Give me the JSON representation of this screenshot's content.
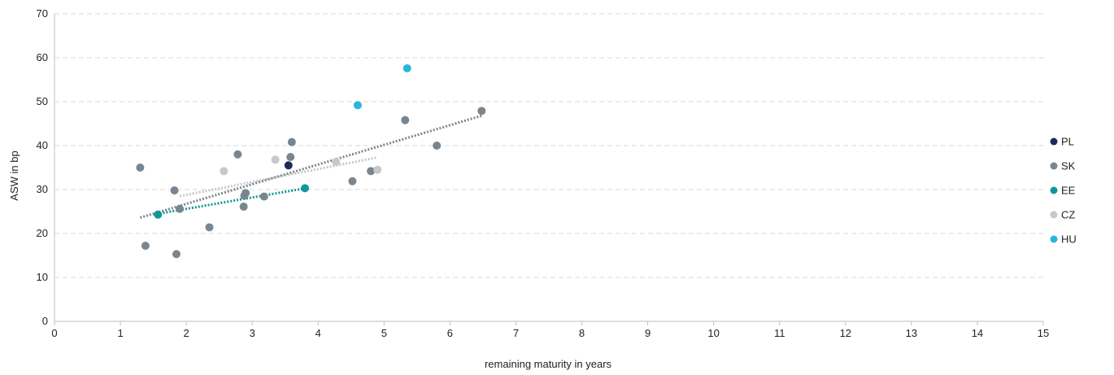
{
  "chart_data": {
    "type": "scatter",
    "title": "",
    "xlabel": "remaining maturity in years",
    "ylabel": "ASW in bp",
    "xlim": [
      0,
      15
    ],
    "ylim": [
      0,
      70
    ],
    "x_ticks": [
      0,
      1,
      2,
      3,
      4,
      5,
      6,
      7,
      8,
      9,
      10,
      11,
      12,
      13,
      14,
      15
    ],
    "y_ticks": [
      0,
      10,
      20,
      30,
      40,
      50,
      60,
      70
    ],
    "grid": "horizontal dashed",
    "legend_position": "right",
    "series": [
      {
        "name": "PL",
        "color": "#1b2a5e",
        "points": [
          [
            3.55,
            35.5
          ]
        ]
      },
      {
        "name": "SK",
        "color": "#7a868f",
        "points": [
          [
            1.3,
            35
          ],
          [
            1.38,
            17.2
          ],
          [
            1.82,
            29.8
          ],
          [
            1.85,
            15.3
          ],
          [
            1.9,
            25.6
          ],
          [
            2.35,
            21.4
          ],
          [
            2.78,
            38
          ],
          [
            2.87,
            26.1
          ],
          [
            2.88,
            28.6
          ],
          [
            2.9,
            29.2
          ],
          [
            3.18,
            28.4
          ],
          [
            3.58,
            37.4
          ],
          [
            3.6,
            40.8
          ],
          [
            4.52,
            31.9
          ],
          [
            4.8,
            34.2
          ],
          [
            5.32,
            45.8
          ],
          [
            5.8,
            40
          ],
          [
            6.48,
            47.9
          ]
        ],
        "trend": [
          [
            1.3,
            23.6
          ],
          [
            6.48,
            46.8
          ]
        ]
      },
      {
        "name": "EE",
        "color": "#129797",
        "points": [
          [
            1.57,
            24.3
          ],
          [
            3.8,
            30.3
          ]
        ],
        "trend": [
          [
            1.5,
            24.3
          ],
          [
            3.85,
            30.4
          ]
        ]
      },
      {
        "name": "CZ",
        "color": "#c8c8c8",
        "points": [
          [
            2.57,
            34.2
          ],
          [
            3.35,
            36.8
          ],
          [
            4.27,
            36.3
          ],
          [
            4.9,
            34.5
          ]
        ],
        "trend": [
          [
            1.9,
            28.5
          ],
          [
            4.9,
            37.3
          ]
        ]
      },
      {
        "name": "HU",
        "color": "#2bb5dc",
        "points": [
          [
            4.6,
            49.2
          ],
          [
            5.35,
            57.6
          ]
        ]
      }
    ]
  }
}
